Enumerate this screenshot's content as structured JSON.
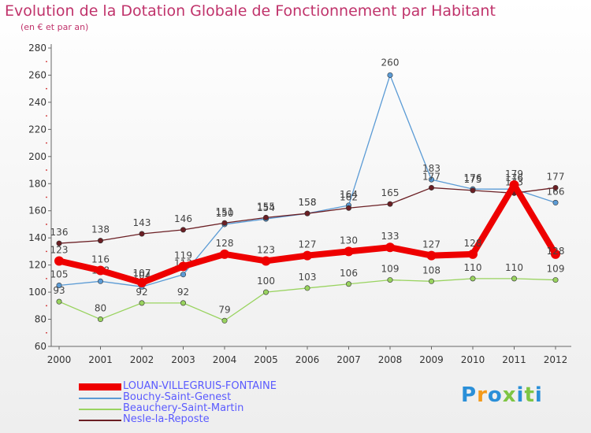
{
  "chart_data": {
    "type": "line",
    "title": "Evolution de la Dotation Globale de Fonctionnement par Habitant",
    "subtitle": "(en € et par an)",
    "categories": [
      "2000",
      "2001",
      "2002",
      "2003",
      "2004",
      "2005",
      "2006",
      "2007",
      "2008",
      "2009",
      "2010",
      "2011",
      "2012"
    ],
    "ylim": [
      60,
      280
    ],
    "yticks": [
      60,
      80,
      100,
      120,
      140,
      160,
      180,
      200,
      220,
      240,
      260,
      280
    ],
    "grid": false,
    "legend_position": "bottom-left",
    "series": [
      {
        "name": "LOUAN-VILLEGRUIS-FONTAINE",
        "color": "#ee0000",
        "values": [
          123,
          116,
          107,
          119,
          128,
          123,
          127,
          130,
          133,
          127,
          128,
          179,
          128
        ]
      },
      {
        "name": "Bouchy-Saint-Genest",
        "color": "#5b9bd5",
        "values": [
          105,
          108,
          104,
          113,
          150,
          154,
          158,
          164,
          260,
          183,
          176,
          176,
          166
        ]
      },
      {
        "name": "Beauchery-Saint-Martin",
        "color": "#99d35f",
        "values": [
          93,
          80,
          92,
          92,
          79,
          100,
          103,
          106,
          109,
          108,
          110,
          110,
          109
        ]
      },
      {
        "name": "Nesle-la-Reposte",
        "color": "#6b1f24",
        "values": [
          136,
          138,
          143,
          146,
          151,
          155,
          158,
          162,
          165,
          177,
          175,
          173,
          177
        ]
      }
    ]
  },
  "logo_text": "Proxiti"
}
